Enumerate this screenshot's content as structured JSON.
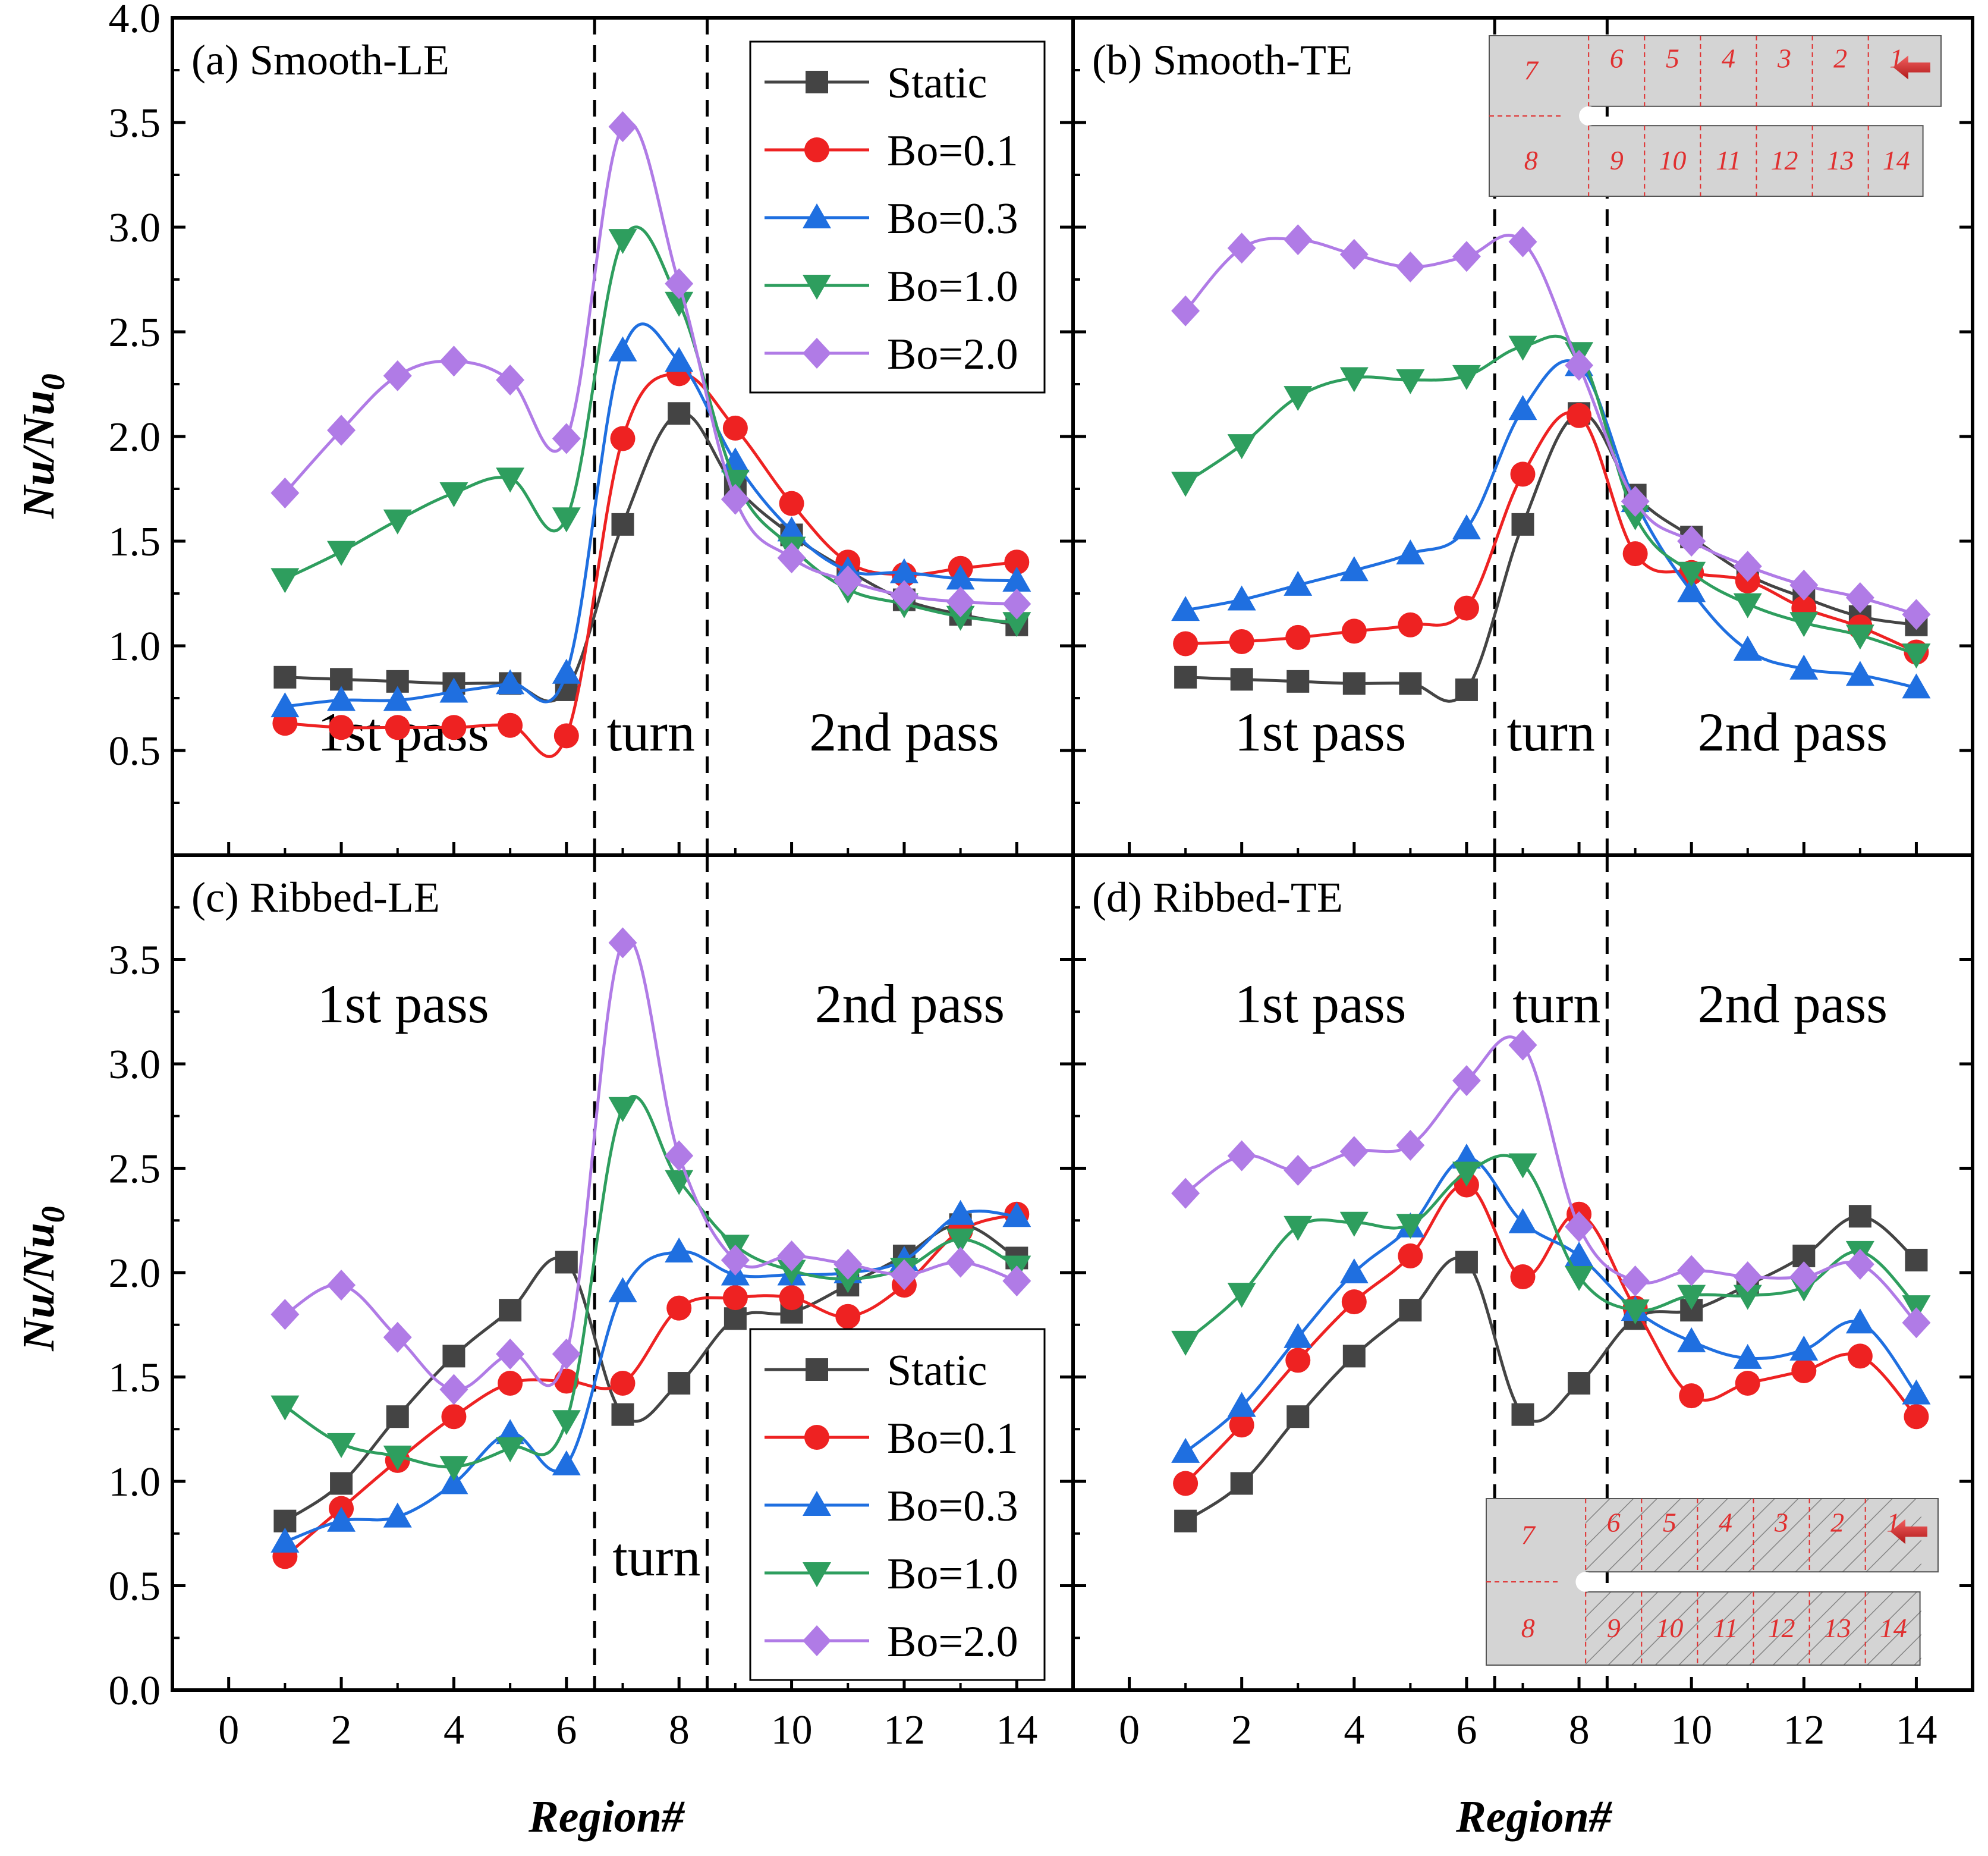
{
  "colors": {
    "Static": "#444444",
    "Bo=0.1": "#ee2222",
    "Bo=0.3": "#1f6fe0",
    "Bo=1.0": "#2e9e5e",
    "Bo=2.0": "#b07be6",
    "inset_fill": "#d4d4d4",
    "inset_red": "#e03030"
  },
  "axes": {
    "xlabel": "Region#",
    "ylabel_main": "Nu/Nu",
    "ylabel_sub": "0",
    "xlim": [
      -1,
      15
    ],
    "ylim_top": [
      0.0,
      4.0
    ],
    "ylim_bottom": [
      0.0,
      4.0
    ],
    "x_ticks": [
      "0",
      "2",
      "4",
      "6",
      "8",
      "10",
      "12",
      "14"
    ],
    "y_ticks_top": [
      "0.5",
      "1.0",
      "1.5",
      "2.0",
      "2.5",
      "3.0",
      "3.5",
      "4.0"
    ],
    "y_ticks_bottom": [
      "0.0",
      "0.5",
      "1.0",
      "1.5",
      "2.0",
      "2.5",
      "3.0",
      "3.5"
    ],
    "turn_boundaries": [
      6.5,
      8.5
    ]
  },
  "legend": {
    "entries": [
      "Static",
      "Bo=0.1",
      "Bo=0.3",
      "Bo=1.0",
      "Bo=2.0"
    ],
    "markers": [
      "square",
      "circle",
      "triangle-up",
      "triangle-down",
      "diamond"
    ]
  },
  "inset": {
    "top_row": [
      "7",
      "6",
      "5",
      "4",
      "3",
      "2",
      "1"
    ],
    "bottom_row": [
      "8",
      "9",
      "10",
      "11",
      "12",
      "13",
      "14"
    ]
  },
  "chart_data": [
    {
      "type": "line",
      "panel": "a",
      "title": "(a) Smooth-LE",
      "labels": [
        "1st pass",
        "turn",
        "2nd pass"
      ],
      "x": [
        1,
        2,
        3,
        4,
        5,
        6,
        7,
        8,
        9,
        10,
        11,
        12,
        13,
        14
      ],
      "series": [
        {
          "name": "Static",
          "values": [
            0.85,
            0.84,
            0.83,
            0.82,
            0.82,
            0.79,
            1.58,
            2.11,
            1.76,
            1.53,
            1.36,
            1.22,
            1.15,
            1.1
          ]
        },
        {
          "name": "Bo=0.1",
          "values": [
            0.63,
            0.61,
            0.61,
            0.61,
            0.62,
            0.57,
            1.99,
            2.3,
            2.04,
            1.68,
            1.4,
            1.34,
            1.37,
            1.4
          ]
        },
        {
          "name": "Bo=0.3",
          "values": [
            0.71,
            0.74,
            0.74,
            0.78,
            0.82,
            0.87,
            2.41,
            2.36,
            1.88,
            1.55,
            1.36,
            1.35,
            1.32,
            1.31
          ]
        },
        {
          "name": "Bo=1.0",
          "values": [
            1.32,
            1.45,
            1.6,
            1.73,
            1.8,
            1.61,
            2.94,
            2.64,
            1.79,
            1.47,
            1.27,
            1.2,
            1.14,
            1.11
          ]
        },
        {
          "name": "Bo=2.0",
          "values": [
            1.73,
            2.03,
            2.29,
            2.36,
            2.27,
            1.99,
            3.48,
            2.73,
            1.7,
            1.42,
            1.31,
            1.24,
            1.21,
            1.2
          ]
        }
      ]
    },
    {
      "type": "line",
      "panel": "b",
      "title": "(b) Smooth-TE",
      "labels": [
        "1st pass",
        "turn",
        "2nd pass"
      ],
      "x": [
        1,
        2,
        3,
        4,
        5,
        6,
        7,
        8,
        9,
        10,
        11,
        12,
        13,
        14
      ],
      "series": [
        {
          "name": "Static",
          "values": [
            0.85,
            0.84,
            0.83,
            0.82,
            0.82,
            0.79,
            1.58,
            2.11,
            1.72,
            1.52,
            1.34,
            1.23,
            1.14,
            1.1
          ]
        },
        {
          "name": "Bo=0.1",
          "values": [
            1.01,
            1.02,
            1.04,
            1.07,
            1.1,
            1.18,
            1.82,
            2.1,
            1.44,
            1.35,
            1.31,
            1.18,
            1.09,
            0.97
          ]
        },
        {
          "name": "Bo=0.3",
          "values": [
            1.17,
            1.22,
            1.29,
            1.36,
            1.44,
            1.56,
            2.13,
            2.34,
            1.69,
            1.26,
            0.98,
            0.89,
            0.86,
            0.8
          ]
        },
        {
          "name": "Bo=1.0",
          "values": [
            1.78,
            1.96,
            2.19,
            2.28,
            2.27,
            2.29,
            2.43,
            2.4,
            1.62,
            1.35,
            1.2,
            1.11,
            1.05,
            0.96
          ]
        },
        {
          "name": "Bo=2.0",
          "values": [
            2.6,
            2.9,
            2.94,
            2.87,
            2.81,
            2.86,
            2.93,
            2.34,
            1.69,
            1.5,
            1.38,
            1.29,
            1.23,
            1.15
          ]
        }
      ]
    },
    {
      "type": "line",
      "panel": "c",
      "title": "(c) Ribbed-LE",
      "labels": [
        "1st pass",
        "turn",
        "2nd pass"
      ],
      "x": [
        1,
        2,
        3,
        4,
        5,
        6,
        7,
        8,
        9,
        10,
        11,
        12,
        13,
        14
      ],
      "series": [
        {
          "name": "Static",
          "values": [
            0.81,
            0.99,
            1.31,
            1.6,
            1.82,
            2.05,
            1.32,
            1.47,
            1.78,
            1.81,
            1.94,
            2.08,
            2.23,
            2.07
          ]
        },
        {
          "name": "Bo=0.1",
          "values": [
            0.64,
            0.87,
            1.1,
            1.31,
            1.47,
            1.48,
            1.47,
            1.83,
            1.88,
            1.88,
            1.79,
            1.94,
            2.2,
            2.28
          ]
        },
        {
          "name": "Bo=0.3",
          "values": [
            0.71,
            0.81,
            0.83,
            0.99,
            1.23,
            1.08,
            1.91,
            2.1,
            1.99,
            1.99,
            2.0,
            2.06,
            2.28,
            2.27
          ]
        },
        {
          "name": "Bo=1.0",
          "values": [
            1.36,
            1.18,
            1.12,
            1.07,
            1.16,
            1.29,
            2.79,
            2.44,
            2.13,
            2.01,
            1.97,
            2.02,
            2.16,
            2.03
          ]
        },
        {
          "name": "Bo=2.0",
          "values": [
            1.8,
            1.94,
            1.69,
            1.44,
            1.61,
            1.61,
            3.58,
            2.56,
            2.06,
            2.08,
            2.04,
            1.99,
            2.05,
            1.96
          ]
        }
      ]
    },
    {
      "type": "line",
      "panel": "d",
      "title": "(d) Ribbed-TE",
      "labels": [
        "1st pass",
        "turn",
        "2nd pass"
      ],
      "x": [
        1,
        2,
        3,
        4,
        5,
        6,
        7,
        8,
        9,
        10,
        11,
        12,
        13,
        14
      ],
      "series": [
        {
          "name": "Static",
          "values": [
            0.81,
            0.99,
            1.31,
            1.6,
            1.82,
            2.05,
            1.32,
            1.47,
            1.78,
            1.82,
            1.94,
            2.08,
            2.27,
            2.06
          ]
        },
        {
          "name": "Bo=0.1",
          "values": [
            0.99,
            1.27,
            1.58,
            1.86,
            2.08,
            2.42,
            1.98,
            2.28,
            1.83,
            1.41,
            1.47,
            1.53,
            1.6,
            1.31
          ]
        },
        {
          "name": "Bo=0.3",
          "values": [
            1.14,
            1.36,
            1.69,
            2.0,
            2.22,
            2.55,
            2.24,
            2.08,
            1.82,
            1.67,
            1.59,
            1.63,
            1.76,
            1.42
          ]
        },
        {
          "name": "Bo=1.0",
          "values": [
            1.67,
            1.9,
            2.22,
            2.24,
            2.23,
            2.48,
            2.52,
            1.98,
            1.82,
            1.89,
            1.89,
            1.93,
            2.1,
            1.84
          ]
        },
        {
          "name": "Bo=2.0",
          "values": [
            2.38,
            2.56,
            2.49,
            2.58,
            2.61,
            2.92,
            3.09,
            2.22,
            1.96,
            2.01,
            1.98,
            1.98,
            2.04,
            1.76
          ]
        }
      ]
    }
  ]
}
